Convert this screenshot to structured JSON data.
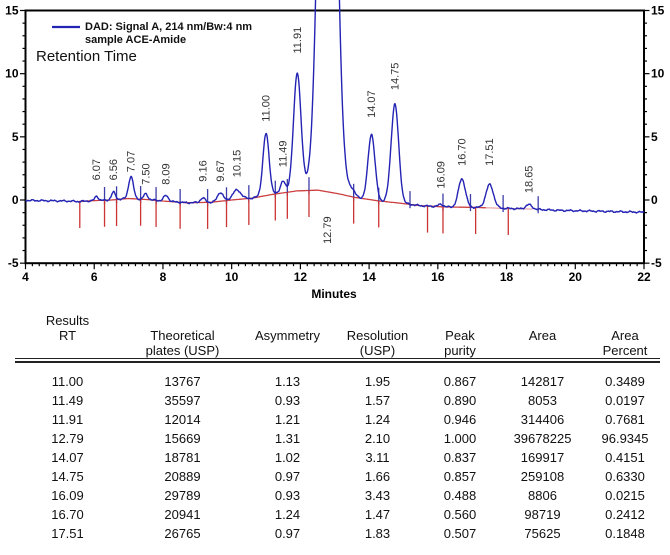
{
  "chart": {
    "legend": {
      "line1": "DAD: Signal A, 214 nm/Bw:4 nm",
      "line2": "sample ACE-Amide",
      "annotation": "Retention Time"
    },
    "xlabel": "Minutes",
    "colors": {
      "signal": "#2323b4",
      "baseline": "#cc4040",
      "baseline_faded": "#e9a8a8",
      "tick_blue": "#3d3daa",
      "tick_red": "#cc3333",
      "axis": "#000000",
      "peak_label": "#333333",
      "tick_label": "#000000"
    }
  },
  "chart_data": {
    "type": "line",
    "title": "",
    "xlabel": "Minutes",
    "ylabel": "",
    "xlim": [
      4,
      22
    ],
    "ylim": [
      -5,
      15
    ],
    "x_ticks": [
      4,
      6,
      8,
      10,
      12,
      14,
      16,
      18,
      20,
      22
    ],
    "y_ticks": [
      -5,
      0,
      5,
      10,
      15
    ],
    "x_minor_step": 0.2,
    "y_minor_step": 1,
    "grid": false,
    "legend_position": "top-left",
    "series": [
      {
        "name": "DAD: Signal A, 214 nm/Bw:4 nm — sample ACE-Amide",
        "kind": "chromatogram-signal"
      }
    ],
    "peaks": [
      {
        "rt": 6.07,
        "height": 0.35,
        "sigma": 0.05,
        "label": "6.07",
        "label_y": 1.55
      },
      {
        "rt": 6.56,
        "height": 0.6,
        "sigma": 0.06,
        "label": "6.56",
        "label_y": 1.55
      },
      {
        "rt": 7.07,
        "height": 1.75,
        "sigma": 0.07,
        "label": "7.07",
        "label_y": 2.2
      },
      {
        "rt": 7.5,
        "height": 0.45,
        "sigma": 0.06,
        "label": "7.50",
        "label_y": 1.2
      },
      {
        "rt": 8.09,
        "height": 0.45,
        "sigma": 0.07,
        "label": "8.09",
        "label_y": 1.2
      },
      {
        "rt": 9.16,
        "height": 0.35,
        "sigma": 0.07,
        "label": "9.16",
        "label_y": 1.45
      },
      {
        "rt": 9.67,
        "height": 0.7,
        "sigma": 0.08,
        "label": "9.67",
        "label_y": 1.45
      },
      {
        "rt": 10.15,
        "height": 0.75,
        "sigma": 0.12,
        "label": "10.15",
        "label_y": 1.8
      },
      {
        "rt": 11.0,
        "height": 4.9,
        "sigma": 0.09,
        "label": "11.00",
        "label_y": 6.2
      },
      {
        "rt": 11.49,
        "height": 0.95,
        "sigma": 0.07,
        "label": "11.49",
        "label_y": 2.6
      },
      {
        "rt": 11.91,
        "height": 9.3,
        "sigma": 0.11,
        "label": "11.91",
        "label_y": 11.6
      },
      {
        "rt": 12.79,
        "height": 60.0,
        "sigma": 0.21,
        "label": "12.79",
        "label_y": -1.3,
        "label_below": true
      },
      {
        "rt": 13.5,
        "height": 0.55,
        "sigma": 0.09,
        "label": null
      },
      {
        "rt": 14.07,
        "height": 5.2,
        "sigma": 0.1,
        "label": "14.07",
        "label_y": 6.5
      },
      {
        "rt": 14.75,
        "height": 7.8,
        "sigma": 0.11,
        "label": "14.75",
        "label_y": 8.7
      },
      {
        "rt": 16.09,
        "height": 0.2,
        "sigma": 0.07,
        "label": "16.09",
        "label_y": 0.9
      },
      {
        "rt": 16.7,
        "height": 2.25,
        "sigma": 0.1,
        "label": "16.70",
        "label_y": 2.7
      },
      {
        "rt": 17.51,
        "height": 1.85,
        "sigma": 0.11,
        "label": "17.51",
        "label_y": 2.7
      },
      {
        "rt": 18.65,
        "height": 0.35,
        "sigma": 0.09,
        "label": "18.65",
        "label_y": 0.55
      }
    ],
    "drift_points": [
      [
        4,
        -0.03
      ],
      [
        5.2,
        -0.08
      ],
      [
        5.55,
        -0.12
      ],
      [
        6,
        -0.05
      ],
      [
        6.5,
        0
      ],
      [
        7,
        0.12
      ],
      [
        7.6,
        0.02
      ],
      [
        8.1,
        -0.1
      ],
      [
        8.7,
        -0.22
      ],
      [
        9.4,
        -0.18
      ],
      [
        10,
        0
      ],
      [
        10.6,
        0.15
      ],
      [
        11.2,
        0.45
      ],
      [
        11.9,
        0.72
      ],
      [
        12.5,
        0.78
      ],
      [
        13.1,
        0.5
      ],
      [
        13.6,
        0.2
      ],
      [
        14.3,
        -0.08
      ],
      [
        14.9,
        -0.25
      ],
      [
        15.5,
        -0.45
      ],
      [
        16.2,
        -0.55
      ],
      [
        17,
        -0.58
      ],
      [
        17.8,
        -0.65
      ],
      [
        18.7,
        -0.72
      ],
      [
        19.5,
        -0.82
      ],
      [
        20.5,
        -0.88
      ],
      [
        22,
        -0.97
      ]
    ],
    "fitted_baseline": {
      "start": 5.55,
      "end": 18.75,
      "fade_from": 17.4
    },
    "integration_ticks": {
      "blue": [
        6.3,
        6.65,
        7.35,
        7.8,
        8.5,
        9.3,
        9.85,
        10.5,
        11.27,
        11.62,
        12.25,
        13.55,
        14.28,
        15.19,
        16.15,
        16.95,
        17.9,
        18.92
      ],
      "red": [
        5.58,
        6.3,
        6.65,
        7.35,
        7.8,
        8.5,
        9.3,
        9.85,
        10.5,
        11.27,
        11.62,
        12.25,
        13.55,
        14.28,
        15.7,
        16.15,
        17.1,
        18.05
      ]
    }
  },
  "table": {
    "title": "Results",
    "header": [
      {
        "lines": [
          "Results",
          "RT",
          ""
        ]
      },
      {
        "lines": [
          "",
          "Theoretical",
          "plates (USP)"
        ]
      },
      {
        "lines": [
          "",
          "Asymmetry",
          ""
        ]
      },
      {
        "lines": [
          "",
          "Resolution",
          "(USP)"
        ]
      },
      {
        "lines": [
          "",
          "Peak",
          "purity"
        ]
      },
      {
        "lines": [
          "",
          "Area",
          ""
        ]
      },
      {
        "lines": [
          "",
          "Area",
          "Percent"
        ]
      }
    ],
    "rows": [
      [
        "11.00",
        "13767",
        "1.13",
        "1.95",
        "0.867",
        "142817",
        "0.3489"
      ],
      [
        "11.49",
        "35597",
        "0.93",
        "1.57",
        "0.890",
        "8053",
        "0.0197"
      ],
      [
        "11.91",
        "12014",
        "1.21",
        "1.24",
        "0.946",
        "314406",
        "0.7681"
      ],
      [
        "12.79",
        "15669",
        "1.31",
        "2.10",
        "1.000",
        "39678225",
        "96.9345"
      ],
      [
        "14.07",
        "18781",
        "1.02",
        "3.11",
        "0.837",
        "169917",
        "0.4151"
      ],
      [
        "14.75",
        "20889",
        "0.97",
        "1.66",
        "0.857",
        "259108",
        "0.6330"
      ],
      [
        "16.09",
        "29789",
        "0.93",
        "3.43",
        "0.488",
        "8806",
        "0.0215"
      ],
      [
        "16.70",
        "20941",
        "1.24",
        "1.47",
        "0.560",
        "98719",
        "0.2412"
      ],
      [
        "17.51",
        "26765",
        "0.97",
        "1.83",
        "0.507",
        "75625",
        "0.1848"
      ]
    ]
  }
}
